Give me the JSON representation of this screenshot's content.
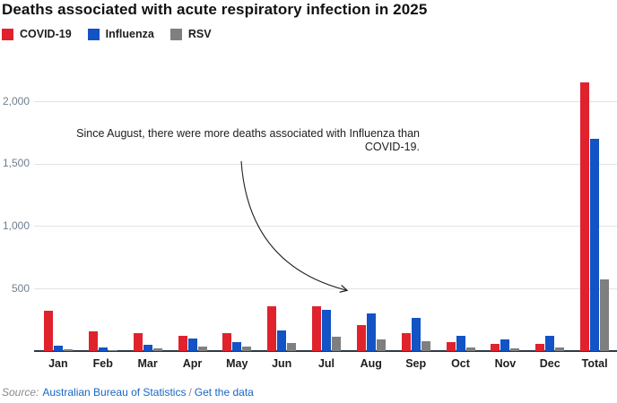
{
  "title": "Deaths associated with acute respiratory infection in 2025",
  "legend": [
    {
      "label": "COVID-19",
      "color": "#e0222d"
    },
    {
      "label": "Influenza",
      "color": "#1253c5"
    },
    {
      "label": "RSV",
      "color": "#7f7f7f"
    }
  ],
  "annotation": {
    "line1": "Since August, there were more deaths associated with Influenza than",
    "line2": "COVID-19."
  },
  "source": {
    "prefix": "Source:",
    "link1": "Australian Bureau of Statistics",
    "separator": "/",
    "link2": "Get the data"
  },
  "chart_data": {
    "type": "bar",
    "title": "Deaths associated with acute respiratory infection in 2025",
    "categories": [
      "Jan",
      "Feb",
      "Mar",
      "Apr",
      "May",
      "Jun",
      "Jul",
      "Aug",
      "Sep",
      "Oct",
      "Nov",
      "Dec",
      "Total"
    ],
    "series": [
      {
        "name": "COVID-19",
        "color": "#e0222d",
        "values": [
          320,
          160,
          140,
          125,
          145,
          355,
          360,
          210,
          145,
          70,
          58,
          55,
          2150
        ]
      },
      {
        "name": "Influenza",
        "color": "#1253c5",
        "values": [
          40,
          32,
          50,
          100,
          75,
          165,
          330,
          300,
          265,
          120,
          95,
          120,
          1700
        ]
      },
      {
        "name": "RSV",
        "color": "#7f7f7f",
        "values": [
          15,
          10,
          18,
          35,
          35,
          65,
          113,
          93,
          78,
          30,
          25,
          30,
          575
        ]
      }
    ],
    "xlabel": "",
    "ylabel": "",
    "ylim": [
      0,
      2200
    ],
    "yticks": [
      {
        "value": 500,
        "label": "500"
      },
      {
        "value": 1000,
        "label": "1,000"
      },
      {
        "value": 1500,
        "label": "1,500"
      },
      {
        "value": 2000,
        "label": "2,000"
      }
    ],
    "grid": true,
    "legend_position": "top-left",
    "annotation_text": "Since August, there were more deaths associated with Influenza than COVID-19."
  }
}
